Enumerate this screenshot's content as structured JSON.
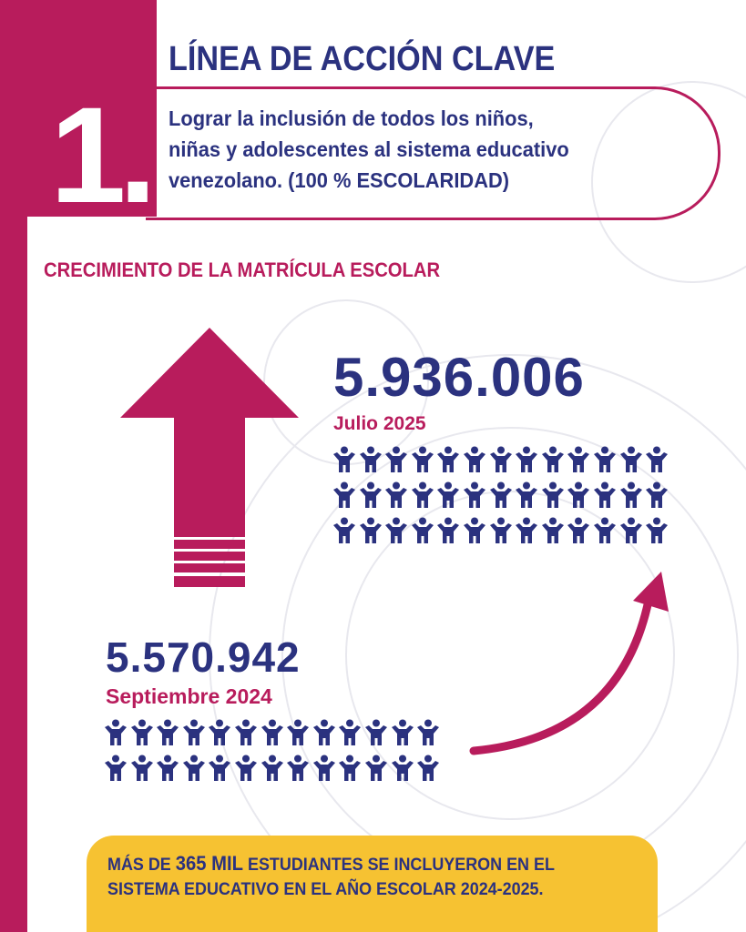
{
  "header": {
    "number": "1.",
    "title": "LÍNEA DE ACCIÓN CLAVE",
    "subtitle_lines": [
      "Lograr la inclusión de todos los niños,",
      "niñas y adolescentes al sistema educativo",
      "venezolano. (100 % ESCOLARIDAD)"
    ]
  },
  "section_title": "CRECIMIENTO DE LA MATRÍCULA ESCOLAR",
  "current": {
    "value": "5.936.006",
    "date": "Julio 2025",
    "people_icons": 39
  },
  "previous": {
    "value": "5.570.942",
    "date": "Septiembre 2024",
    "people_icons": 26
  },
  "note": {
    "prefix": "MÁS DE ",
    "highlight": "365 MIL",
    "line1_rest": " ESTUDIANTES SE INCLUYERON EN EL",
    "line2": "SISTEMA EDUCATIVO EN EL AÑO ESCOLAR 2024-2025."
  },
  "icons": {
    "up_arrow": "up-arrow-icon",
    "curved_arrow": "curved-arrow-icon",
    "person": "person-icon"
  },
  "colors": {
    "magenta": "#b81c5c",
    "navy": "#2b327f",
    "yellow": "#f6c232"
  }
}
